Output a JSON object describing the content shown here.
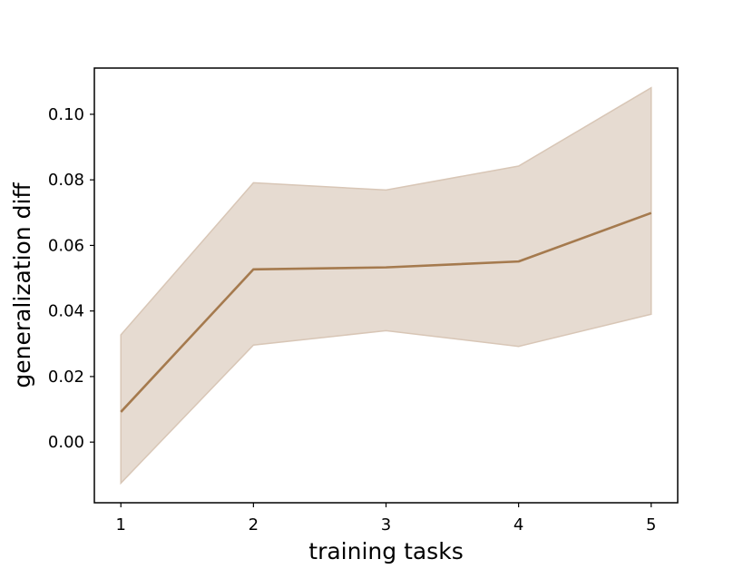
{
  "chart_data": {
    "type": "line",
    "xlabel": "training tasks",
    "ylabel": "generalization diff",
    "x": [
      1,
      2,
      3,
      4,
      5
    ],
    "series": [
      {
        "values": [
          0.0092,
          0.0527,
          0.0533,
          0.0551,
          0.0699
        ],
        "lower": [
          -0.0125,
          0.0296,
          0.034,
          0.0292,
          0.039
        ],
        "upper": [
          0.0327,
          0.0791,
          0.0769,
          0.0842,
          0.1081
        ],
        "color": "#a57a4e",
        "band_color": "#e6dbd1",
        "band_edge_color": "#d8c6b6"
      }
    ],
    "xticks": [
      "1",
      "2",
      "3",
      "4",
      "5"
    ],
    "yticks": [
      "0.00",
      "0.02",
      "0.04",
      "0.06",
      "0.08",
      "0.10"
    ],
    "xlim": [
      0.8,
      5.2
    ],
    "ylim": [
      -0.0185,
      0.1141
    ],
    "grid": false,
    "legend": "none"
  }
}
